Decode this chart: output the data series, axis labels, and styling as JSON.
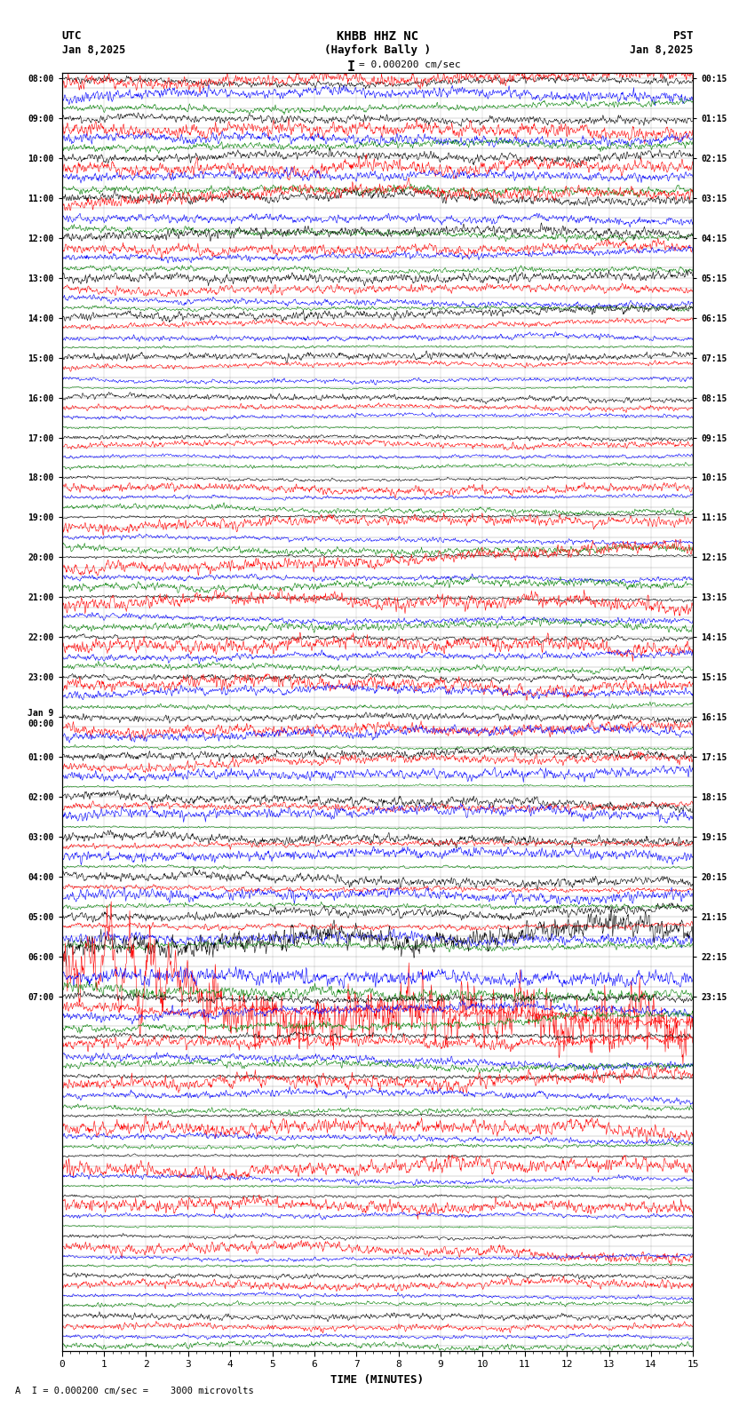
{
  "title_line1": "KHBB HHZ NC",
  "title_line2": "(Hayfork Bally )",
  "scale_label": "= 0.000200 cm/sec",
  "footer_label": "A  I = 0.000200 cm/sec =    3000 microvolts",
  "utc_label": "UTC",
  "pst_label": "PST",
  "date_left": "Jan 8,2025",
  "date_right": "Jan 8,2025",
  "xlabel": "TIME (MINUTES)",
  "xlim": [
    0,
    15
  ],
  "xticks": [
    0,
    1,
    2,
    3,
    4,
    5,
    6,
    7,
    8,
    9,
    10,
    11,
    12,
    13,
    14,
    15
  ],
  "colors": [
    "black",
    "red",
    "blue",
    "green"
  ],
  "background_color": "white",
  "num_groups": 32,
  "row_labels_left": [
    "08:00",
    "09:00",
    "10:00",
    "11:00",
    "12:00",
    "13:00",
    "14:00",
    "15:00",
    "16:00",
    "17:00",
    "18:00",
    "19:00",
    "20:00",
    "21:00",
    "22:00",
    "23:00",
    "Jan 9\n00:00",
    "01:00",
    "02:00",
    "03:00",
    "04:00",
    "05:00",
    "06:00",
    "07:00",
    "",
    "",
    "",
    "",
    "",
    "",
    "",
    "",
    "",
    "",
    "",
    "",
    "",
    "",
    "",
    "",
    "",
    "",
    "",
    "",
    "",
    "",
    "",
    "",
    "",
    "",
    "",
    "",
    "",
    "",
    "",
    "",
    "",
    "",
    "",
    "",
    "",
    "",
    "",
    ""
  ],
  "row_labels_right": [
    "00:15",
    "01:15",
    "02:15",
    "03:15",
    "04:15",
    "05:15",
    "06:15",
    "07:15",
    "08:15",
    "09:15",
    "10:15",
    "11:15",
    "12:15",
    "13:15",
    "14:15",
    "15:15",
    "16:15",
    "17:15",
    "18:15",
    "19:15",
    "20:15",
    "21:15",
    "22:15",
    "23:15",
    "",
    "",
    "",
    "",
    "",
    "",
    "",
    "",
    "",
    "",
    "",
    "",
    "",
    "",
    "",
    "",
    "",
    "",
    "",
    "",
    "",
    "",
    "",
    "",
    "",
    "",
    "",
    "",
    "",
    "",
    "",
    "",
    "",
    "",
    "",
    "",
    "",
    "",
    "",
    ""
  ],
  "event_group": 22,
  "event_group2": 15
}
